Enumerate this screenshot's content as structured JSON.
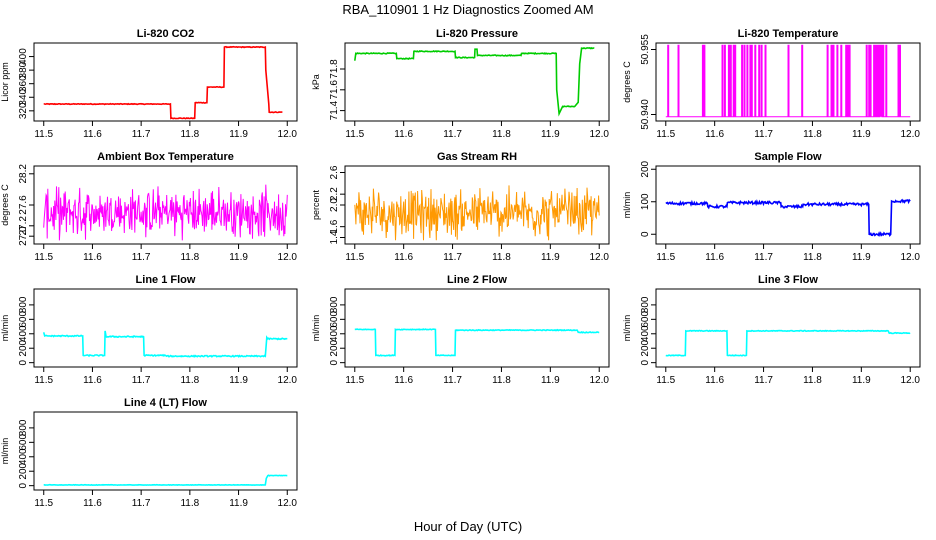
{
  "page": {
    "title": "RBA_110901  1 Hz Diagnostics Zoomed AM",
    "xlabel": "Hour of Day (UTC)"
  },
  "chart_data": [
    {
      "type": "line",
      "title": "Li-820 CO2",
      "ylabel": "Licor ppm",
      "color": "#ff0000",
      "xlim": [
        11.48,
        12.02
      ],
      "ylim": [
        305,
        420
      ],
      "xticks": [
        "11.5",
        "11.6",
        "11.7",
        "11.8",
        "11.9",
        "12.0"
      ],
      "yticks": [
        {
          "v": 320,
          "label": "320"
        },
        {
          "v": 340,
          "label": "340"
        },
        {
          "v": 360,
          "label": "360"
        },
        {
          "v": 380,
          "label": "380"
        },
        {
          "v": 400,
          "label": "400"
        }
      ],
      "noise": 0.5,
      "x": [
        11.5,
        11.76,
        11.761,
        11.81,
        11.811,
        11.835,
        11.836,
        11.87,
        11.871,
        11.955,
        11.956,
        11.962,
        11.963,
        11.99
      ],
      "y": [
        330,
        330,
        309,
        309,
        332,
        332,
        355,
        355,
        414,
        414,
        380,
        330,
        318,
        318
      ]
    },
    {
      "type": "line",
      "title": "Li-820 Pressure",
      "ylabel": "kPa",
      "color": "#00cc00",
      "xlim": [
        11.48,
        12.02
      ],
      "ylim": [
        71.3,
        72.05
      ],
      "xticks": [
        "11.5",
        "11.6",
        "11.7",
        "11.8",
        "11.9",
        "12.0"
      ],
      "yticks": [
        {
          "v": 71.4,
          "label": "71.4"
        },
        {
          "v": 71.6,
          "label": "71.6"
        },
        {
          "v": 71.8,
          "label": "71.8"
        }
      ],
      "noise": 0.004,
      "x": [
        11.5,
        11.502,
        11.585,
        11.586,
        11.62,
        11.621,
        11.705,
        11.706,
        11.745,
        11.746,
        11.75,
        11.751,
        11.8,
        11.84,
        11.841,
        11.912,
        11.913,
        11.918,
        11.925,
        11.95,
        11.957,
        11.96,
        11.964,
        11.99
      ],
      "y": [
        71.88,
        71.95,
        71.95,
        71.9,
        71.9,
        71.97,
        71.97,
        71.91,
        71.91,
        71.99,
        71.99,
        71.93,
        71.93,
        71.93,
        71.95,
        71.95,
        71.6,
        71.37,
        71.44,
        71.44,
        71.48,
        71.85,
        72.0,
        72.0
      ]
    },
    {
      "type": "spikes",
      "title": "Li-820 Temperature",
      "ylabel": "degrees C",
      "color": "#ff00ff",
      "xlim": [
        11.48,
        12.02
      ],
      "ylim": [
        50.9385,
        50.9565
      ],
      "xticks": [
        "11.5",
        "11.6",
        "11.7",
        "11.8",
        "11.9",
        "12.0"
      ],
      "yticks": [
        {
          "v": 50.94,
          "label": "50.940"
        },
        {
          "v": 50.955,
          "label": "50.955"
        }
      ],
      "low": 50.9395,
      "high": 50.956,
      "spike_x": [
        11.504,
        11.525,
        11.575,
        11.578,
        11.615,
        11.62,
        11.628,
        11.632,
        11.638,
        11.641,
        11.655,
        11.66,
        11.666,
        11.672,
        11.675,
        11.682,
        11.69,
        11.695,
        11.703,
        11.75,
        11.778,
        11.83,
        11.838,
        11.842,
        11.85,
        11.858,
        11.868,
        11.872,
        11.875,
        11.91,
        11.915,
        11.918,
        11.925,
        11.928,
        11.932,
        11.935,
        11.938,
        11.94,
        11.944,
        11.95,
        11.975,
        11.978
      ]
    },
    {
      "type": "noise",
      "title": "Ambient Box Temperature",
      "ylabel": "degrees C",
      "color": "#ff00ff",
      "xlim": [
        11.48,
        12.02
      ],
      "ylim": [
        26.85,
        28.35
      ],
      "xticks": [
        "11.5",
        "11.6",
        "11.7",
        "11.8",
        "11.9",
        "12.0"
      ],
      "yticks": [
        {
          "v": 27.0,
          "label": "27.0"
        },
        {
          "v": 27.2,
          "label": "27.2"
        },
        {
          "v": 27.6,
          "label": "27.6"
        },
        {
          "v": 28.2,
          "label": "28.2"
        }
      ],
      "center": 27.45,
      "amplitude": 0.8,
      "minv": 26.9,
      "maxv": 28.3
    },
    {
      "type": "noise",
      "title": "Gas Stream RH",
      "ylabel": "percent",
      "color": "#ff9900",
      "xlim": [
        11.48,
        12.02
      ],
      "ylim": [
        1.28,
        2.72
      ],
      "xticks": [
        "11.5",
        "11.6",
        "11.7",
        "11.8",
        "11.9",
        "12.0"
      ],
      "yticks": [
        {
          "v": 1.4,
          "label": "1.4"
        },
        {
          "v": 1.6,
          "label": "1.6"
        },
        {
          "v": 2.0,
          "label": "2.0"
        },
        {
          "v": 2.2,
          "label": "2.2"
        },
        {
          "v": 2.6,
          "label": "2.6"
        }
      ],
      "center": 1.85,
      "amplitude": 0.8,
      "minv": 1.35,
      "maxv": 2.65
    },
    {
      "type": "line",
      "title": "Sample Flow",
      "ylabel": "ml/min",
      "color": "#0000ff",
      "xlim": [
        11.48,
        12.02
      ],
      "ylim": [
        -30,
        210
      ],
      "xticks": [
        "11.5",
        "11.6",
        "11.7",
        "11.8",
        "11.9",
        "12.0"
      ],
      "yticks": [
        {
          "v": 0,
          "label": "0"
        },
        {
          "v": 100,
          "label": "100"
        },
        {
          "v": 200,
          "label": "200"
        }
      ],
      "noise": 4,
      "x": [
        11.5,
        11.585,
        11.586,
        11.625,
        11.626,
        11.735,
        11.736,
        11.78,
        11.781,
        11.915,
        11.916,
        11.96,
        11.962,
        12.0
      ],
      "y": [
        95,
        95,
        85,
        85,
        97,
        97,
        85,
        85,
        92,
        92,
        0,
        0,
        102,
        102
      ]
    },
    {
      "type": "line",
      "title": "Line 1 Flow",
      "ylabel": "ml/min",
      "color": "#00ffff",
      "xlim": [
        11.48,
        12.02
      ],
      "ylim": [
        -60,
        1020
      ],
      "xticks": [
        "11.5",
        "11.6",
        "11.7",
        "11.8",
        "11.9",
        "12.0"
      ],
      "yticks": [
        {
          "v": 0,
          "label": "0"
        },
        {
          "v": 200,
          "label": "200"
        },
        {
          "v": 400,
          "label": "400"
        },
        {
          "v": 600,
          "label": "600"
        },
        {
          "v": 800,
          "label": "800"
        }
      ],
      "noise": 8,
      "x": [
        11.5,
        11.502,
        11.58,
        11.581,
        11.625,
        11.626,
        11.628,
        11.705,
        11.706,
        11.75,
        11.752,
        11.955,
        11.958,
        11.96,
        12.0
      ],
      "y": [
        420,
        370,
        370,
        100,
        100,
        440,
        360,
        360,
        100,
        100,
        90,
        90,
        350,
        330,
        330
      ]
    },
    {
      "type": "line",
      "title": "Line 2 Flow",
      "ylabel": "ml/min",
      "color": "#00ffff",
      "xlim": [
        11.48,
        12.02
      ],
      "ylim": [
        -60,
        1020
      ],
      "xticks": [
        "11.5",
        "11.6",
        "11.7",
        "11.8",
        "11.9",
        "12.0"
      ],
      "yticks": [
        {
          "v": 0,
          "label": "0"
        },
        {
          "v": 200,
          "label": "200"
        },
        {
          "v": 400,
          "label": "400"
        },
        {
          "v": 600,
          "label": "600"
        },
        {
          "v": 800,
          "label": "800"
        }
      ],
      "noise": 5,
      "x": [
        11.5,
        11.542,
        11.543,
        11.582,
        11.583,
        11.665,
        11.666,
        11.705,
        11.706,
        11.955,
        11.957,
        12.0
      ],
      "y": [
        460,
        460,
        100,
        100,
        460,
        460,
        100,
        100,
        450,
        450,
        420,
        420
      ]
    },
    {
      "type": "line",
      "title": "Line 3 Flow",
      "ylabel": "ml/min",
      "color": "#00ffff",
      "xlim": [
        11.48,
        12.02
      ],
      "ylim": [
        -60,
        1020
      ],
      "xticks": [
        "11.5",
        "11.6",
        "11.7",
        "11.8",
        "11.9",
        "12.0"
      ],
      "yticks": [
        {
          "v": 0,
          "label": "0"
        },
        {
          "v": 200,
          "label": "200"
        },
        {
          "v": 400,
          "label": "400"
        },
        {
          "v": 600,
          "label": "600"
        },
        {
          "v": 800,
          "label": "800"
        }
      ],
      "noise": 5,
      "x": [
        11.5,
        11.54,
        11.541,
        11.625,
        11.626,
        11.665,
        11.666,
        11.955,
        11.957,
        12.0
      ],
      "y": [
        100,
        100,
        440,
        440,
        100,
        100,
        440,
        440,
        410,
        410
      ]
    },
    {
      "type": "line",
      "title": "Line 4 (LT) Flow",
      "ylabel": "ml/min",
      "color": "#00ffff",
      "xlim": [
        11.48,
        12.02
      ],
      "ylim": [
        -60,
        1020
      ],
      "xticks": [
        "11.5",
        "11.6",
        "11.7",
        "11.8",
        "11.9",
        "12.0"
      ],
      "yticks": [
        {
          "v": 0,
          "label": "0"
        },
        {
          "v": 200,
          "label": "200"
        },
        {
          "v": 400,
          "label": "400"
        },
        {
          "v": 600,
          "label": "600"
        },
        {
          "v": 800,
          "label": "800"
        }
      ],
      "noise": 3,
      "x": [
        11.5,
        11.955,
        11.957,
        11.96,
        12.0
      ],
      "y": [
        10,
        10,
        100,
        140,
        140
      ]
    }
  ]
}
